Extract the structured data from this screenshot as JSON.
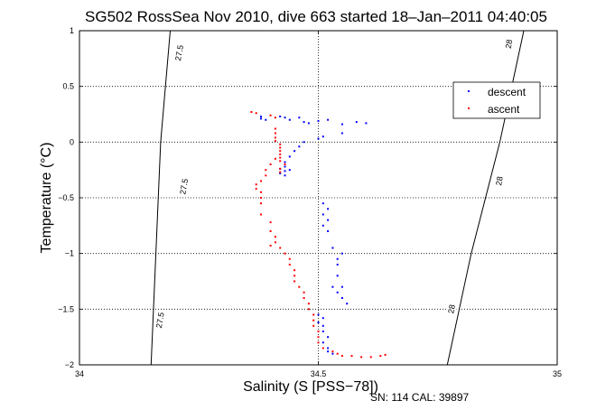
{
  "chart_data": {
    "type": "scatter",
    "title": "SG502 RossSea Nov 2010, dive 663 started 18–Jan–2011 04:40:05",
    "xlabel": "Salinity (S [PSS−78])",
    "ylabel": "Temperature (°C)",
    "xlim": [
      34,
      35
    ],
    "ylim": [
      -2,
      1
    ],
    "xticks": [
      "34",
      "34.5",
      "35"
    ],
    "yticks": [
      "1",
      "0.5",
      "0",
      "−0.5",
      "−1",
      "−1.5",
      "−2"
    ],
    "grid": true,
    "legend_position": "top-right",
    "footer": "SN: 114  CAL: 39897",
    "density_contours": [
      {
        "label": "27.5",
        "points": [
          [
            34.19,
            1
          ],
          [
            34.17,
            0
          ],
          [
            34.16,
            -1
          ],
          [
            34.15,
            -2
          ]
        ]
      },
      {
        "label": "28",
        "points": [
          [
            34.93,
            1
          ],
          [
            34.88,
            0
          ],
          [
            34.82,
            -1
          ],
          [
            34.77,
            -2
          ]
        ]
      }
    ],
    "contour_labels": [
      {
        "text": "27.5",
        "x": 34.21,
        "y": 0.8
      },
      {
        "text": "27.5",
        "x": 34.22,
        "y": -0.4
      },
      {
        "text": "27.5",
        "x": 34.17,
        "y": -1.6
      },
      {
        "text": "28",
        "x": 34.9,
        "y": 0.88
      },
      {
        "text": "28",
        "x": 34.88,
        "y": -0.35
      },
      {
        "text": "28",
        "x": 34.78,
        "y": -1.5
      }
    ],
    "series": [
      {
        "name": "descent",
        "color": "#0000ff",
        "points": [
          [
            34.38,
            0.23
          ],
          [
            34.38,
            0.21
          ],
          [
            34.39,
            0.2
          ],
          [
            34.42,
            0.23
          ],
          [
            34.43,
            0.22
          ],
          [
            34.44,
            0.2
          ],
          [
            34.46,
            0.22
          ],
          [
            34.47,
            0.18
          ],
          [
            34.48,
            0.17
          ],
          [
            34.5,
            0.19
          ],
          [
            34.52,
            0.2
          ],
          [
            34.55,
            0.16
          ],
          [
            34.58,
            0.18
          ],
          [
            34.6,
            0.17
          ],
          [
            34.55,
            0.08
          ],
          [
            34.51,
            0.05
          ],
          [
            34.5,
            0.03
          ],
          [
            34.47,
            0.0
          ],
          [
            34.46,
            -0.04
          ],
          [
            34.45,
            -0.08
          ],
          [
            34.44,
            -0.13
          ],
          [
            34.43,
            -0.18
          ],
          [
            34.43,
            -0.2
          ],
          [
            34.43,
            -0.22
          ],
          [
            34.42,
            -0.24
          ],
          [
            34.43,
            -0.26
          ],
          [
            34.42,
            -0.28
          ],
          [
            34.43,
            -0.3
          ],
          [
            34.44,
            -0.25
          ],
          [
            34.51,
            -0.55
          ],
          [
            34.52,
            -0.6
          ],
          [
            34.51,
            -0.65
          ],
          [
            34.52,
            -0.7
          ],
          [
            34.51,
            -0.75
          ],
          [
            34.52,
            -0.8
          ],
          [
            34.53,
            -0.95
          ],
          [
            34.54,
            -1.05
          ],
          [
            34.55,
            -1.0
          ],
          [
            34.54,
            -1.1
          ],
          [
            34.54,
            -1.2
          ],
          [
            34.53,
            -1.3
          ],
          [
            34.54,
            -1.35
          ],
          [
            34.55,
            -1.4
          ],
          [
            34.56,
            -1.45
          ],
          [
            34.55,
            -1.3
          ],
          [
            34.5,
            -1.55
          ],
          [
            34.51,
            -1.58
          ],
          [
            34.5,
            -1.62
          ],
          [
            34.51,
            -1.65
          ],
          [
            34.51,
            -1.7
          ],
          [
            34.52,
            -1.75
          ],
          [
            34.51,
            -1.8
          ],
          [
            34.52,
            -1.85
          ],
          [
            34.52,
            -1.88
          ],
          [
            34.53,
            -1.9
          ]
        ]
      },
      {
        "name": "ascent",
        "color": "#ff0000",
        "points": [
          [
            34.36,
            0.27
          ],
          [
            34.37,
            0.26
          ],
          [
            34.4,
            0.24
          ],
          [
            34.41,
            0.22
          ],
          [
            34.41,
            0.12
          ],
          [
            34.41,
            0.08
          ],
          [
            34.41,
            0.04
          ],
          [
            34.41,
            0.01
          ],
          [
            34.42,
            -0.02
          ],
          [
            34.42,
            -0.05
          ],
          [
            34.42,
            -0.08
          ],
          [
            34.42,
            -0.11
          ],
          [
            34.42,
            -0.14
          ],
          [
            34.42,
            -0.17
          ],
          [
            34.43,
            -0.2
          ],
          [
            34.42,
            -0.24
          ],
          [
            34.42,
            -0.27
          ],
          [
            34.41,
            -0.15
          ],
          [
            34.4,
            -0.2
          ],
          [
            34.39,
            -0.25
          ],
          [
            34.39,
            -0.3
          ],
          [
            34.38,
            -0.35
          ],
          [
            34.37,
            -0.38
          ],
          [
            34.37,
            -0.42
          ],
          [
            34.38,
            -0.45
          ],
          [
            34.38,
            -0.5
          ],
          [
            34.38,
            -0.55
          ],
          [
            34.38,
            -0.65
          ],
          [
            34.4,
            -0.72
          ],
          [
            34.4,
            -0.8
          ],
          [
            34.41,
            -0.85
          ],
          [
            34.41,
            -0.9
          ],
          [
            34.4,
            -0.93
          ],
          [
            34.42,
            -0.95
          ],
          [
            34.43,
            -1.0
          ],
          [
            34.44,
            -1.05
          ],
          [
            34.44,
            -1.1
          ],
          [
            34.45,
            -1.15
          ],
          [
            34.45,
            -1.2
          ],
          [
            34.45,
            -1.25
          ],
          [
            34.46,
            -1.3
          ],
          [
            34.47,
            -1.35
          ],
          [
            34.47,
            -1.4
          ],
          [
            34.48,
            -1.45
          ],
          [
            34.48,
            -1.5
          ],
          [
            34.49,
            -1.55
          ],
          [
            34.49,
            -1.6
          ],
          [
            34.49,
            -1.65
          ],
          [
            34.5,
            -1.7
          ],
          [
            34.5,
            -1.75
          ],
          [
            34.5,
            -1.8
          ],
          [
            34.51,
            -1.85
          ],
          [
            34.53,
            -1.88
          ],
          [
            34.54,
            -1.9
          ],
          [
            34.55,
            -1.92
          ],
          [
            34.57,
            -1.92
          ],
          [
            34.59,
            -1.93
          ],
          [
            34.61,
            -1.93
          ],
          [
            34.63,
            -1.92
          ],
          [
            34.64,
            -1.91
          ]
        ]
      }
    ]
  }
}
